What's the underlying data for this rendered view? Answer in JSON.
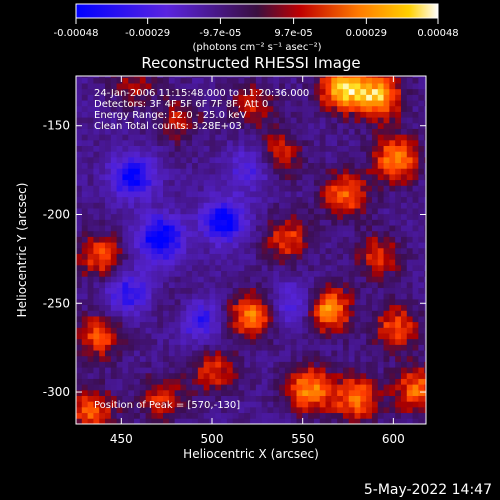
{
  "chart_data": {
    "type": "heatmap",
    "title": "Reconstructed RHESSI Image",
    "xlabel": "Heliocentric X (arcsec)",
    "ylabel": "Heliocentric Y (arcsec)",
    "xlim": [
      425,
      618
    ],
    "ylim": [
      -318,
      -122
    ],
    "x_ticks": [
      450,
      500,
      550,
      600
    ],
    "y_ticks": [
      -150,
      -200,
      -250,
      -300
    ],
    "colorbar": {
      "ticks": [
        "-0.00048",
        "-0.00029",
        "-9.7e-05",
        "9.7e-05",
        "0.00029",
        "0.00048"
      ],
      "tick_values": [
        -0.00048,
        -0.00029,
        -9.7e-05,
        9.7e-05,
        0.00029,
        0.00048
      ],
      "range": [
        -0.00048,
        0.00048
      ],
      "unit_label": "(photons cm⁻² s⁻¹ asec⁻²)",
      "colors": [
        "#0000ff",
        "#6a1fd0",
        "#a10000",
        "#ff3000",
        "#ff9a00",
        "#ffff60",
        "#ffffff"
      ]
    },
    "annotations": [
      "24-Jan-2006 11:15:48.000 to 11:20:36.000",
      "Detectors: 3F 4F 5F 6F 7F 8F, Att 0",
      "Energy Range: 12.0 - 25.0 keV",
      "Clean     Total counts: 3.28E+03"
    ],
    "peak_label": "Position of Peak = [570,-130]",
    "peak": [
      570,
      -130
    ],
    "hotspots": [
      {
        "x": 562,
        "y": -255,
        "value": 0.00045
      },
      {
        "x": 520,
        "y": -258,
        "value": 0.00038
      },
      {
        "x": 572,
        "y": -190,
        "value": 0.00034
      },
      {
        "x": 600,
        "y": -170,
        "value": 0.0004
      },
      {
        "x": 590,
        "y": -135,
        "value": 0.00046
      },
      {
        "x": 570,
        "y": -130,
        "value": 0.00048
      },
      {
        "x": 552,
        "y": -300,
        "value": 0.0004
      },
      {
        "x": 578,
        "y": -305,
        "value": 0.00036
      },
      {
        "x": 612,
        "y": -300,
        "value": 0.00035
      },
      {
        "x": 600,
        "y": -265,
        "value": 0.0003
      },
      {
        "x": 437,
        "y": -225,
        "value": 0.0003
      },
      {
        "x": 436,
        "y": -270,
        "value": 0.0003
      },
      {
        "x": 432,
        "y": -312,
        "value": 0.00032
      },
      {
        "x": 500,
        "y": -290,
        "value": 0.00025
      },
      {
        "x": 470,
        "y": -305,
        "value": 0.00024
      },
      {
        "x": 535,
        "y": -168,
        "value": 0.00026
      },
      {
        "x": 540,
        "y": -215,
        "value": 0.00028
      },
      {
        "x": 480,
        "y": -148,
        "value": 0.0002
      },
      {
        "x": 522,
        "y": -140,
        "value": 0.00022
      },
      {
        "x": 455,
        "y": -128,
        "value": 0.00018
      },
      {
        "x": 590,
        "y": -225,
        "value": 0.00025
      },
      {
        "x": 482,
        "y": -255,
        "value": 0.00015
      }
    ],
    "coldspots": [
      {
        "x": 470,
        "y": -215,
        "value": -0.00045
      },
      {
        "x": 505,
        "y": -205,
        "value": -0.00042
      },
      {
        "x": 455,
        "y": -180,
        "value": -0.0004
      },
      {
        "x": 490,
        "y": -260,
        "value": -0.00035
      },
      {
        "x": 452,
        "y": -245,
        "value": -0.0003
      },
      {
        "x": 520,
        "y": -175,
        "value": -0.00025
      },
      {
        "x": 545,
        "y": -252,
        "value": -0.00028
      }
    ],
    "grid": false
  },
  "timestamp": "5-May-2022 14:47"
}
